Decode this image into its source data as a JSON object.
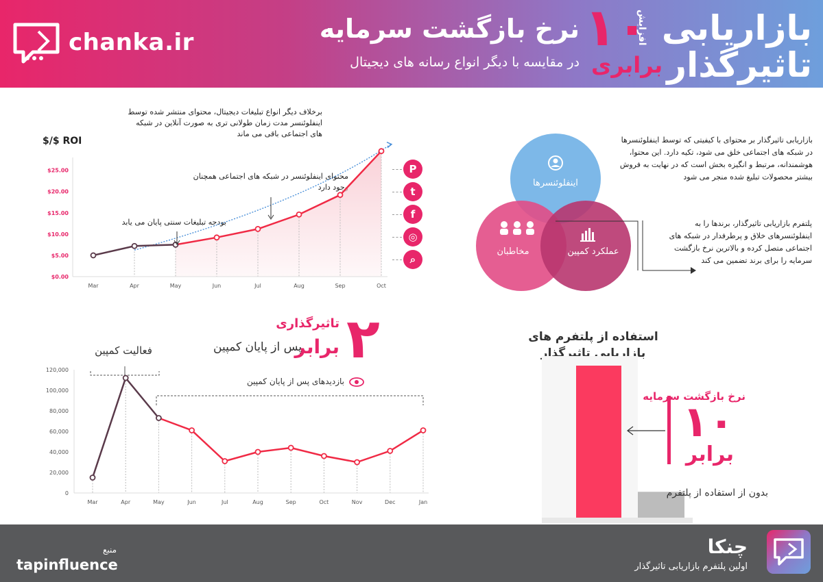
{
  "header": {
    "brand": "chanka.ir",
    "title": "نرخ بازگشت سرمایه",
    "subtitle": "در مقایسه با دیگر انواع رسانه های دیجیتال",
    "big_number": "۱۰",
    "increase_label": "افزایش",
    "times_label": "برابری",
    "right_title_1": "بازاریابی",
    "right_title_2": "تاثیرگذار"
  },
  "roi_chart": {
    "ylabel": "$/$ ROI",
    "annotation_top": "برخلاف دیگر انواع تبلیغات دیجیتال، محتوای منتشر شده توسط اینفلوئنسر مدت زمان طولانی تری به صورت آنلاین در شبکه های اجتماعی باقی می ماند",
    "annotation_mid": "محتوای اینفلوئنسر در شبکه های اجتماعی همچنان وجود دارد",
    "annotation_budget": "بودجه تبلیغات سنتی پایان می یابد",
    "social_icons": [
      "pinterest-icon",
      "twitter-icon",
      "facebook-icon",
      "instagram-icon",
      "search-icon"
    ]
  },
  "venn": {
    "description": "بازاریابی تاثیرگذار بر محتوای با کیفیتی که توسط اینفلوئنسرها در شبکه های اجتماعی خلق می شود، تکیه دارد. این محتوا، هوشمندانه، مرتبط و انگیزه بخش است که در نهایت به فروش بیشتر محصولات تبلیغ شده منجر می شود",
    "circle_influencers": "اینفلوئنسرها",
    "circle_audience": "مخاطبان",
    "circle_campaign": "عملکرد کمپین",
    "platform_note": "پلتفرم بازاریابی تاثیرگذار، برندها را به اینفلوئنسرهای خلاق و پرطرفدار در شبکه های اجتماعی متصل کرده و بالاترین نرخ بازگشت سرمایه را برای برند تضمین می کند",
    "colors": {
      "influencers": "#6fb0e6",
      "audience": "#e24c86",
      "campaign": "#b8366f"
    }
  },
  "impact": {
    "big_number": "۲",
    "label_top": "تاثیرگذاری",
    "label_times": "برابر",
    "label_after": "پس از پایان کمپین",
    "campaign_activity": "فعالیت کمپین",
    "post_views": "بازدیدهای پس از پایان کمپین"
  },
  "bar_section": {
    "title_1": "استفاده از پلتفرم های",
    "title_2": "بازاریابی تاثیرگذار",
    "roi_label": "نرخ بازگشت سرمایه",
    "big_number": "۱۰",
    "times_label": "برابر",
    "without_label": "بدون از استفاده از پلتفرم",
    "colors": {
      "with": "#fb3a5f",
      "without": "#bcbcbc"
    }
  },
  "footer": {
    "source_label": "منبع",
    "source_name": "tapinfluence",
    "brand": "چنکا",
    "tagline": "اولین پلتفرم بازاریابی تاثیرگذار"
  },
  "chart_data": [
    {
      "type": "line",
      "title": "",
      "xlabel": "",
      "ylabel": "$/$ ROI",
      "x": [
        "Mar",
        "Apr",
        "May",
        "Jun",
        "Jul",
        "Aug",
        "Sep",
        "Oct"
      ],
      "y_ticks": [
        "$0.00",
        "$5.00",
        "$10.00",
        "$15.00",
        "$20.00",
        "$25.00"
      ],
      "ylim": [
        0,
        28
      ],
      "series": [
        {
          "values": [
            5.0,
            7.2,
            7.5,
            9.2,
            11.2,
            14.6,
            19.2,
            29.5
          ]
        }
      ],
      "colors": {
        "campaign": "#5a3a4a",
        "after": "#f02a45",
        "trend": "#4a90d9",
        "fill": "#f9cfd6"
      },
      "grid": false
    },
    {
      "type": "line",
      "title": "",
      "xlabel": "",
      "ylabel": "",
      "x": [
        "Mar",
        "Apr",
        "May",
        "Jun",
        "Jul",
        "Aug",
        "Sep",
        "Oct",
        "Nov",
        "Dec",
        "Jan"
      ],
      "y_ticks": [
        "0",
        "20,000",
        "40,000",
        "60,000",
        "80,000",
        "100,000",
        "120,000"
      ],
      "ylim": [
        0,
        120000
      ],
      "series": [
        {
          "values": [
            15000,
            112000,
            73000,
            61000,
            31000,
            40000,
            44000,
            36000,
            30000,
            41000,
            61000
          ]
        }
      ],
      "colors": {
        "campaign": "#5a3a4a",
        "after": "#f02a45"
      },
      "grid": false
    },
    {
      "type": "bar",
      "categories": [
        "with-platform",
        "without-platform"
      ],
      "values": [
        10,
        1
      ],
      "title": "",
      "xlabel": "",
      "ylabel": ""
    }
  ]
}
